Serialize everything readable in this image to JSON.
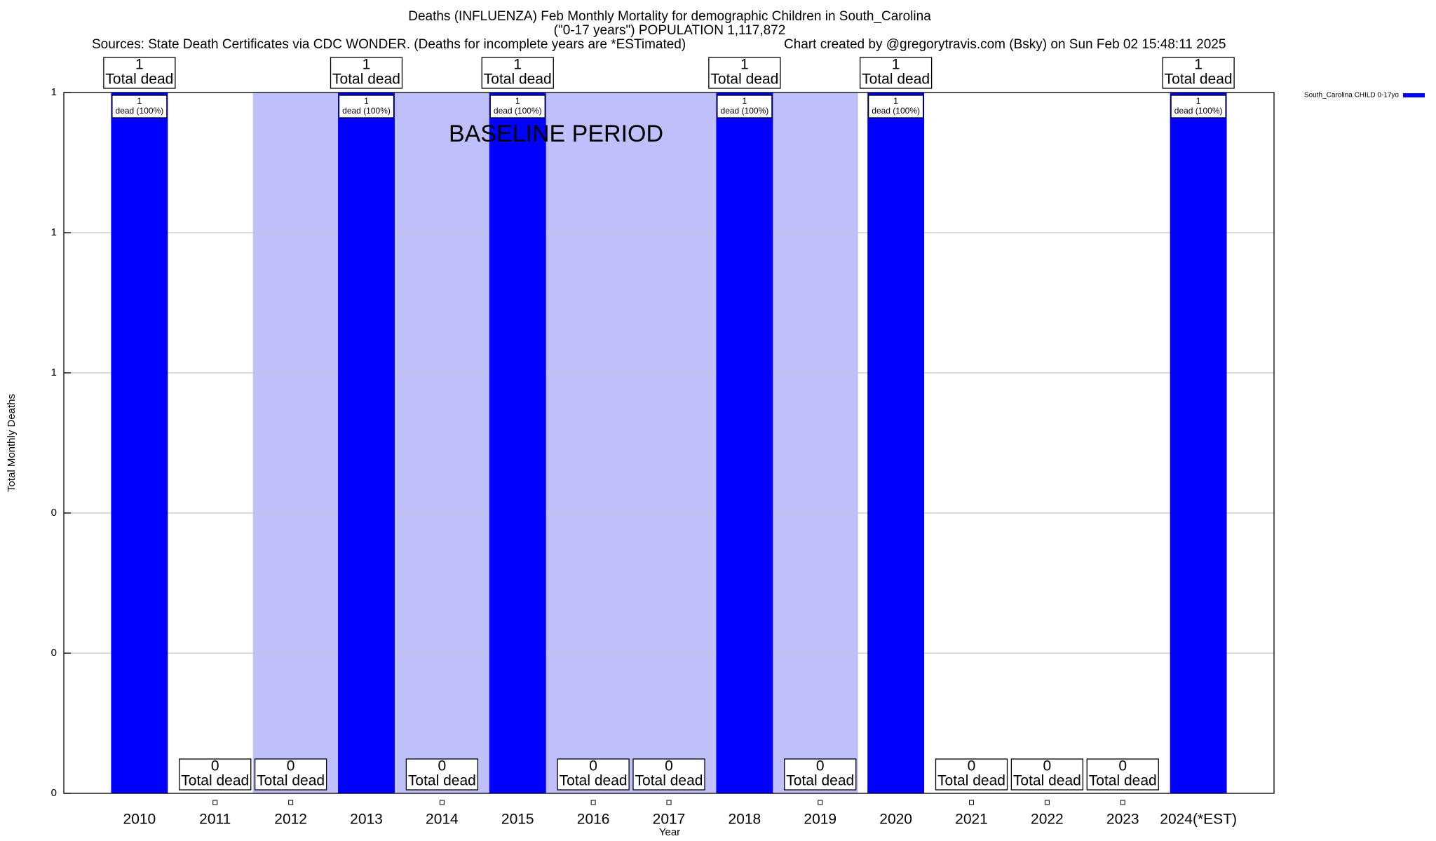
{
  "chart_data": {
    "type": "bar",
    "title": "Deaths (INFLUENZA) Feb Monthly Mortality for demographic Children in South_Carolina",
    "subtitle": "(\"0-17 years\") POPULATION 1,117,872",
    "sources": "Sources: State Death Certificates via CDC WONDER. (Deaths for incomplete years are *ESTimated)",
    "credit": "Chart created by @gregorytravis.com (Bsky) on Sun Feb 02 15:48:11 2025",
    "x_label": "Year",
    "y_label": "Total Monthly Deaths",
    "annotation": "BASELINE PERIOD",
    "shaded_range": [
      "2012",
      "2019"
    ],
    "shade_color": "#bfbff9",
    "total_label": "Total dead",
    "share_label": "dead (100%)",
    "categories": [
      "2010",
      "2011",
      "2012",
      "2013",
      "2014",
      "2015",
      "2016",
      "2017",
      "2018",
      "2019",
      "2020",
      "2021",
      "2022",
      "2023",
      "2024(*EST)"
    ],
    "series": [
      {
        "name": "South_Carolina CHILD 0-17yo",
        "color": "#0000ff",
        "values": [
          1,
          0,
          0,
          1,
          0,
          1,
          0,
          0,
          1,
          0,
          1,
          0,
          0,
          0,
          1
        ]
      }
    ],
    "ylim": [
      0,
      1
    ],
    "yticks": [
      0,
      {
        "value": 0.2,
        "label": "0"
      },
      {
        "value": 0.4,
        "label": "0"
      },
      {
        "value": 0.6,
        "label": "1"
      },
      {
        "value": 0.8,
        "label": "1"
      },
      1
    ],
    "grid": true,
    "legend": "top-right"
  }
}
